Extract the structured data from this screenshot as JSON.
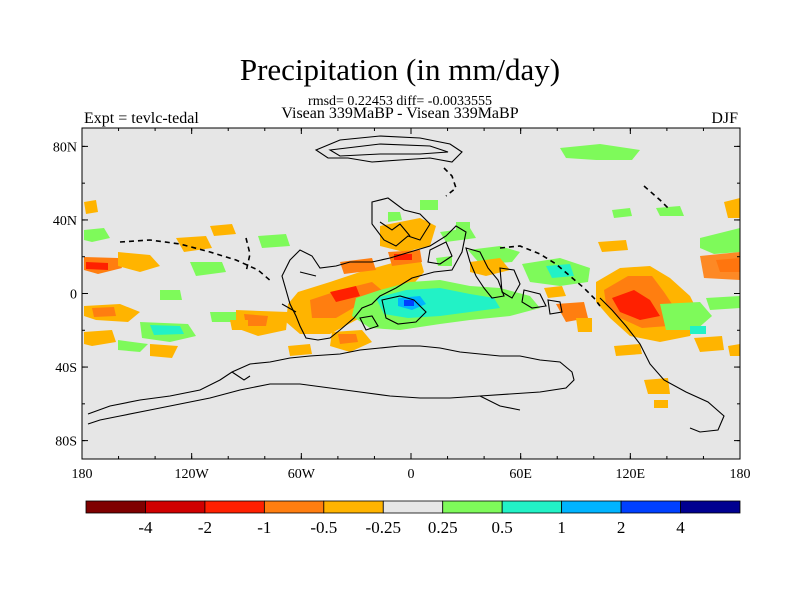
{
  "title": "Precipitation (in mm/day)",
  "stats": "rmsd= 0.22453 diff= -0.0033555",
  "subtitle": "Visean 339MaBP - Visean 339MaBP",
  "left_label": "Expt = tevlc-tedal",
  "right_label": "DJF",
  "colors": {
    "background_field": "#e6e6e6",
    "frame": "#000000"
  },
  "map": {
    "lon_range": [
      -180,
      180
    ],
    "lat_range": [
      -90,
      90
    ],
    "x_ticks": [
      {
        "value": -180,
        "label": "180"
      },
      {
        "value": -120,
        "label": "120W"
      },
      {
        "value": -60,
        "label": "60W"
      },
      {
        "value": 0,
        "label": "0"
      },
      {
        "value": 60,
        "label": "60E"
      },
      {
        "value": 120,
        "label": "120E"
      },
      {
        "value": 180,
        "label": "180"
      }
    ],
    "y_ticks": [
      {
        "value": 80,
        "label": "80N"
      },
      {
        "value": 40,
        "label": "40N"
      },
      {
        "value": 0,
        "label": "0"
      },
      {
        "value": -40,
        "label": "40S"
      },
      {
        "value": -80,
        "label": "80S"
      }
    ]
  },
  "colorbar": {
    "bins": [
      {
        "color": "#7f0000"
      },
      {
        "color": "#d00000"
      },
      {
        "color": "#ff2000"
      },
      {
        "color": "#ff7e10"
      },
      {
        "color": "#ffb400"
      },
      {
        "color": "#e6e6e6"
      },
      {
        "color": "#7efa5a"
      },
      {
        "color": "#22f2c6"
      },
      {
        "color": "#00b4ff"
      },
      {
        "color": "#0040ff"
      },
      {
        "color": "#000090"
      }
    ],
    "labels": [
      "-4",
      "-2",
      "-1",
      "-0.5",
      "-0.25",
      "0.25",
      "0.5",
      "1",
      "2",
      "4"
    ]
  }
}
